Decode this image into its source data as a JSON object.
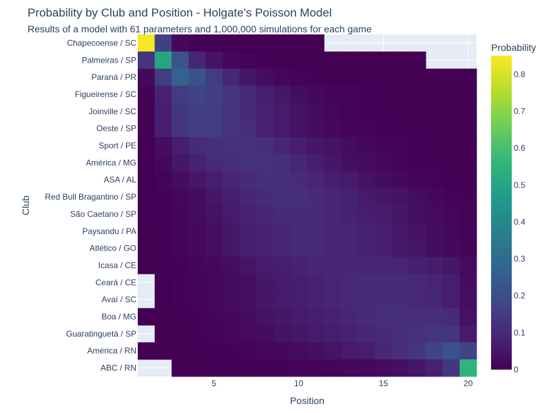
{
  "chart_data": {
    "type": "heatmap",
    "title": "Probability by Club and Position - Holgate's Poisson Model",
    "subtitle": "Results of a model with 61 parameters and 1,000,000 simulations for each game",
    "xlabel": "Position",
    "ylabel": "Club",
    "x": [
      1,
      2,
      3,
      4,
      5,
      6,
      7,
      8,
      9,
      10,
      11,
      12,
      13,
      14,
      15,
      16,
      17,
      18,
      19,
      20
    ],
    "x_tick_labels": [
      "5",
      "10",
      "15",
      "20"
    ],
    "x_tick_values": [
      5,
      10,
      15,
      20
    ],
    "clubs": [
      "Chapecoense / SC",
      "Palmeiras / SP",
      "Paraná / PR",
      "Figueirense / SC",
      "Joinville / SC",
      "Oeste / SP",
      "Sport / PE",
      "América / MG",
      "ASA / AL",
      "Red Bull Bragantino / SP",
      "São Caetano / SP",
      "Paysandu / PA",
      "Atlético / GO",
      "Icasa / CE",
      "Ceará / CE",
      "Avaí / SC",
      "Boa / MG",
      "Guaratinguetá / SP",
      "América / RN",
      "ABC / RN"
    ],
    "z": [
      [
        0.84,
        0.16,
        0.02,
        0.005,
        0.002,
        0.001,
        0.001,
        0.0005,
        0.0003,
        0.0002,
        0.0001,
        null,
        null,
        null,
        null,
        null,
        null,
        null,
        null,
        null
      ],
      [
        0.13,
        0.5,
        0.22,
        0.09,
        0.04,
        0.02,
        0.01,
        0.005,
        0.003,
        0.002,
        0.001,
        0.0005,
        0.0003,
        0.0002,
        0.0001,
        0.0001,
        0.0001,
        null,
        null,
        null
      ],
      [
        0.02,
        0.15,
        0.26,
        0.21,
        0.15,
        0.09,
        0.05,
        0.03,
        0.015,
        0.008,
        0.004,
        0.002,
        0.001,
        0.0006,
        0.0003,
        0.0002,
        0.0001,
        0.0001,
        0.0001,
        0.0001
      ],
      [
        0.004,
        0.08,
        0.15,
        0.17,
        0.16,
        0.13,
        0.1,
        0.07,
        0.05,
        0.03,
        0.02,
        0.012,
        0.007,
        0.004,
        0.002,
        0.001,
        0.0006,
        0.0003,
        0.0002,
        0.0001
      ],
      [
        0.003,
        0.07,
        0.14,
        0.16,
        0.15,
        0.13,
        0.1,
        0.08,
        0.06,
        0.04,
        0.025,
        0.015,
        0.01,
        0.006,
        0.003,
        0.002,
        0.001,
        0.0005,
        0.0003,
        0.0001
      ],
      [
        0.003,
        0.07,
        0.13,
        0.15,
        0.15,
        0.13,
        0.11,
        0.08,
        0.06,
        0.04,
        0.03,
        0.02,
        0.012,
        0.007,
        0.004,
        0.002,
        0.001,
        0.0006,
        0.0003,
        0.0002
      ],
      [
        0.001,
        0.03,
        0.07,
        0.1,
        0.11,
        0.12,
        0.12,
        0.11,
        0.09,
        0.07,
        0.05,
        0.04,
        0.03,
        0.02,
        0.012,
        0.007,
        0.004,
        0.002,
        0.001,
        0.0005
      ],
      [
        0.0005,
        0.02,
        0.05,
        0.08,
        0.1,
        0.11,
        0.12,
        0.12,
        0.11,
        0.09,
        0.07,
        0.05,
        0.035,
        0.025,
        0.015,
        0.009,
        0.005,
        0.003,
        0.001,
        0.0006
      ],
      [
        0.0003,
        0.01,
        0.03,
        0.05,
        0.07,
        0.09,
        0.1,
        0.11,
        0.11,
        0.1,
        0.09,
        0.07,
        0.06,
        0.04,
        0.03,
        0.02,
        0.012,
        0.007,
        0.003,
        0.001
      ],
      [
        0.0001,
        0.005,
        0.015,
        0.03,
        0.05,
        0.07,
        0.09,
        0.1,
        0.11,
        0.11,
        0.1,
        0.09,
        0.08,
        0.06,
        0.05,
        0.04,
        0.03,
        0.018,
        0.01,
        0.005
      ],
      [
        0.0001,
        0.004,
        0.012,
        0.025,
        0.04,
        0.06,
        0.08,
        0.09,
        0.1,
        0.1,
        0.1,
        0.09,
        0.08,
        0.07,
        0.06,
        0.05,
        0.035,
        0.025,
        0.015,
        0.007
      ],
      [
        0.0001,
        0.003,
        0.01,
        0.02,
        0.035,
        0.05,
        0.07,
        0.08,
        0.09,
        0.1,
        0.1,
        0.09,
        0.09,
        0.08,
        0.07,
        0.055,
        0.04,
        0.03,
        0.018,
        0.008
      ],
      [
        0.0001,
        0.003,
        0.01,
        0.02,
        0.035,
        0.05,
        0.07,
        0.08,
        0.09,
        0.1,
        0.1,
        0.09,
        0.09,
        0.08,
        0.07,
        0.055,
        0.045,
        0.03,
        0.02,
        0.009
      ],
      [
        0.0001,
        0.002,
        0.006,
        0.012,
        0.02,
        0.03,
        0.045,
        0.06,
        0.07,
        0.08,
        0.09,
        0.09,
        0.09,
        0.09,
        0.09,
        0.085,
        0.075,
        0.065,
        0.05,
        0.025
      ],
      [
        null,
        0.001,
        0.004,
        0.008,
        0.015,
        0.025,
        0.035,
        0.05,
        0.06,
        0.07,
        0.08,
        0.09,
        0.095,
        0.1,
        0.1,
        0.1,
        0.095,
        0.085,
        0.07,
        0.03
      ],
      [
        null,
        0.001,
        0.004,
        0.008,
        0.015,
        0.025,
        0.035,
        0.05,
        0.06,
        0.07,
        0.08,
        0.09,
        0.095,
        0.1,
        0.1,
        0.1,
        0.095,
        0.09,
        0.07,
        0.035
      ],
      [
        0.0001,
        0.001,
        0.003,
        0.006,
        0.011,
        0.02,
        0.03,
        0.04,
        0.05,
        0.06,
        0.07,
        0.08,
        0.09,
        0.1,
        0.11,
        0.11,
        0.11,
        0.11,
        0.1,
        0.04
      ],
      [
        null,
        0.001,
        0.002,
        0.005,
        0.009,
        0.015,
        0.022,
        0.03,
        0.04,
        0.05,
        0.06,
        0.07,
        0.08,
        0.09,
        0.1,
        0.11,
        0.12,
        0.13,
        0.13,
        0.06
      ],
      [
        0.0001,
        0.0005,
        0.001,
        0.002,
        0.004,
        0.006,
        0.01,
        0.014,
        0.02,
        0.027,
        0.035,
        0.045,
        0.06,
        0.07,
        0.09,
        0.11,
        0.14,
        0.17,
        0.21,
        0.17
      ],
      [
        null,
        null,
        0.0005,
        0.001,
        0.002,
        0.003,
        0.004,
        0.005,
        0.006,
        0.008,
        0.01,
        0.013,
        0.016,
        0.02,
        0.027,
        0.036,
        0.05,
        0.08,
        0.14,
        0.55
      ]
    ],
    "zlim": [
      0,
      0.85
    ],
    "colorbar": {
      "title": "Probability",
      "tick_values": [
        0,
        0.1,
        0.2,
        0.3,
        0.4,
        0.5,
        0.6,
        0.7,
        0.8
      ],
      "tick_labels": [
        "0",
        "0.1",
        "0.2",
        "0.3",
        "0.4",
        "0.5",
        "0.6",
        "0.7",
        "0.8"
      ]
    },
    "colorscale": "Viridis",
    "background_color": "#e5ecf6",
    "gridlines": true
  }
}
